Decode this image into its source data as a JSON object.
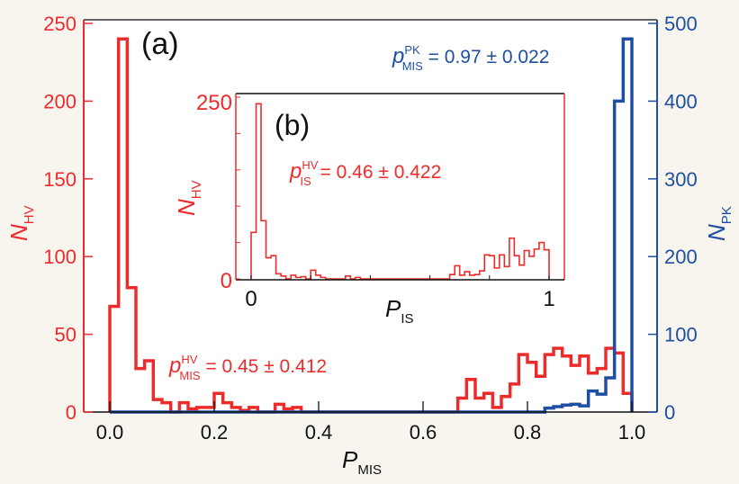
{
  "colors": {
    "red": "#ee2b2b",
    "blue": "#1f4fa3",
    "black": "#111111"
  },
  "chart_data": [
    {
      "type": "histogram",
      "panel_label": "(a)",
      "xlabel": {
        "main": "P",
        "sub": "MIS"
      },
      "ylabel_left": {
        "main": "N",
        "sub": "HV"
      },
      "ylabel_right": {
        "main": "N",
        "sub": "PK"
      },
      "xlim": [
        0,
        1
      ],
      "ylim_left": [
        0,
        250
      ],
      "ylim_right": [
        0,
        500
      ],
      "x_ticks": [
        "0.0",
        "0.2",
        "0.4",
        "0.6",
        "0.8",
        "1.0"
      ],
      "y_ticks_left": [
        "0",
        "50",
        "100",
        "150",
        "200",
        "250"
      ],
      "y_ticks_right": [
        "0",
        "100",
        "200",
        "300",
        "400",
        "500"
      ],
      "bin_width": 0.016667,
      "series": [
        {
          "name": "HV",
          "axis": "left",
          "color": "red",
          "values": [
            68,
            240,
            80,
            28,
            33,
            8,
            6,
            0,
            6,
            2,
            3,
            3,
            12,
            6,
            3,
            1,
            3,
            0,
            0,
            5,
            2,
            3,
            0,
            0,
            0,
            0,
            0,
            0,
            0,
            0,
            0,
            0,
            0,
            0,
            0,
            0,
            0,
            0,
            0,
            0,
            9,
            21,
            9,
            12,
            3,
            10,
            18,
            37,
            32,
            23,
            37,
            41,
            36,
            30,
            36,
            25,
            28,
            41,
            38,
            12
          ]
        },
        {
          "name": "PK",
          "axis": "right",
          "color": "blue",
          "values": [
            0,
            0,
            0,
            0,
            0,
            0,
            0,
            0,
            0,
            0,
            0,
            0,
            0,
            0,
            0,
            0,
            0,
            0,
            0,
            0,
            0,
            0,
            0,
            0,
            0,
            0,
            0,
            0,
            0,
            0,
            0,
            0,
            0,
            0,
            0,
            0,
            0,
            0,
            0,
            0,
            0,
            0,
            0,
            0,
            0,
            0,
            0,
            0,
            0,
            0,
            5,
            7,
            9,
            10,
            8,
            27,
            23,
            44,
            400,
            480
          ]
        }
      ],
      "annotations": [
        {
          "p": "p",
          "sup": "HV",
          "sub": "MIS",
          "text": " = 0.45 ± 0.412",
          "color": "red"
        },
        {
          "p": "p",
          "sup": "PK",
          "sub": "MIS",
          "text": " = 0.97 ± 0.022",
          "color": "blue"
        }
      ]
    },
    {
      "type": "histogram",
      "panel_label": "(b)",
      "xlabel": {
        "main": "P",
        "sub": "IS"
      },
      "ylabel_left": {
        "main": "N",
        "sub": "HV"
      },
      "xlim": [
        0,
        1
      ],
      "ylim_left": [
        0,
        250
      ],
      "x_ticks": [
        "0",
        "1"
      ],
      "y_ticks_left": [
        "0",
        "250"
      ],
      "bin_width": 0.016667,
      "series": [
        {
          "name": "HV",
          "axis": "left",
          "color": "red",
          "values": [
            64,
            241,
            80,
            29,
            32,
            7,
            4,
            0,
            5,
            2,
            3,
            0,
            12,
            5,
            2,
            0,
            0,
            0,
            0,
            4,
            0,
            2,
            0,
            0,
            0,
            0,
            0,
            0,
            0,
            0,
            0,
            0,
            0,
            0,
            0,
            0,
            0,
            0,
            0,
            0,
            6,
            18,
            5,
            10,
            5,
            6,
            11,
            33,
            32,
            15,
            33,
            17,
            56,
            32,
            19,
            39,
            31,
            41,
            50,
            40
          ]
        }
      ],
      "annotations": [
        {
          "p": "p",
          "sup": "HV",
          "sub": "IS",
          "text": " = 0.46 ± 0.422",
          "color": "red"
        }
      ]
    }
  ]
}
